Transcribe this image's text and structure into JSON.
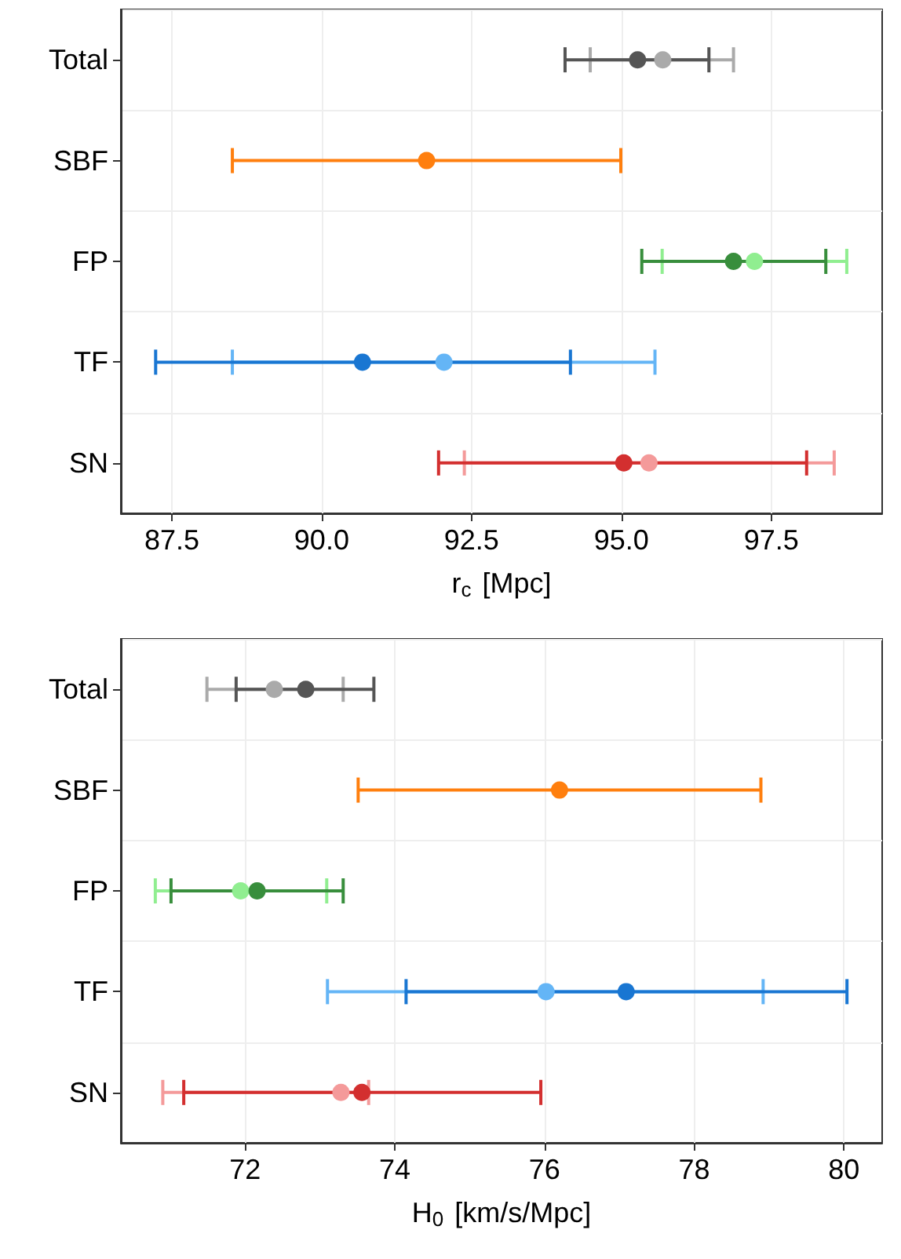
{
  "chart_data": [
    {
      "type": "scatter",
      "orientation": "horizontal",
      "categories": [
        "Total",
        "SBF",
        "FP",
        "TF",
        "SN"
      ],
      "xlabel": "r$_{c}$ [Mpc]",
      "xlim": [
        86.65,
        99.35
      ],
      "xticks": [
        {
          "value": 87.5,
          "label": "87.5"
        },
        {
          "value": 90,
          "label": "90.0"
        },
        {
          "value": 92.5,
          "label": "92.5"
        },
        {
          "value": 95,
          "label": "95.0"
        },
        {
          "value": 97.5,
          "label": "97.5"
        }
      ],
      "grid": true,
      "marker": "circle",
      "series": [
        {
          "colors": [
            "#555555",
            "#ff7f0e",
            "#388e3c",
            "#1976d2",
            "#d32f2f"
          ],
          "values": [
            95.27,
            91.75,
            96.87,
            90.68,
            95.04
          ],
          "errors": [
            [
              94.06,
              96.46
            ],
            [
              88.51,
              94.99
            ],
            [
              95.34,
              98.41
            ],
            [
              87.23,
              94.15
            ],
            [
              91.95,
              98.09
            ]
          ]
        },
        {
          "colors": [
            "#aaaaaa",
            null,
            "#90ee90",
            "#64b5f6",
            "#f49a9a"
          ],
          "values": [
            95.69,
            null,
            97.22,
            92.04,
            95.46
          ],
          "errors": [
            [
              94.48,
              96.87
            ],
            null,
            [
              95.68,
              98.76
            ],
            [
              88.51,
              95.56
            ],
            [
              92.38,
              98.55
            ]
          ]
        }
      ]
    },
    {
      "type": "scatter",
      "orientation": "horizontal",
      "categories": [
        "Total",
        "SBF",
        "FP",
        "TF",
        "SN"
      ],
      "xlabel": "H$_{0}$ [km/s/Mpc]",
      "xlim": [
        70.34,
        80.51
      ],
      "xticks": [
        72,
        74,
        76,
        78,
        80
      ],
      "grid": true,
      "marker": "circle",
      "series": [
        {
          "colors": [
            "#555555",
            "#ff7f0e",
            "#388e3c",
            "#1976d2",
            "#d32f2f"
          ],
          "values": [
            72.81,
            76.2,
            72.16,
            77.09,
            73.56
          ],
          "errors": [
            [
              71.88,
              73.72
            ],
            [
              73.51,
              78.89
            ],
            [
              71.01,
              73.31
            ],
            [
              74.15,
              80.04
            ],
            [
              71.18,
              75.95
            ]
          ]
        },
        {
          "colors": [
            "#aaaaaa",
            null,
            "#90ee90",
            "#64b5f6",
            "#f49a9a"
          ],
          "values": [
            72.39,
            null,
            71.94,
            76.02,
            73.28
          ],
          "errors": [
            [
              71.49,
              73.31
            ],
            null,
            [
              70.8,
              73.09
            ],
            [
              73.1,
              78.92
            ],
            [
              70.9,
              73.65
            ]
          ]
        }
      ]
    }
  ]
}
